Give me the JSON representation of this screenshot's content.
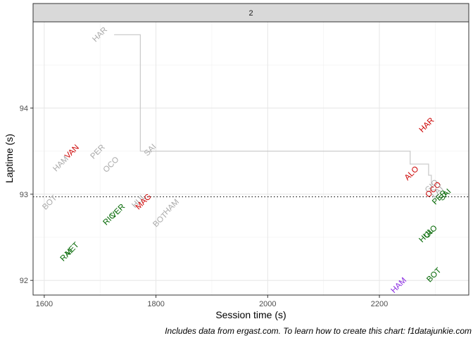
{
  "chart_data": {
    "type": "scatter",
    "facet_label": "2",
    "xlabel": "Session time (s)",
    "ylabel": "Laptime (s)",
    "xlim": [
      1580,
      2360
    ],
    "ylim": [
      91.83,
      95.0
    ],
    "x_ticks": [
      1600,
      1800,
      2000,
      2200
    ],
    "y_ticks": [
      92,
      93,
      94
    ],
    "grid": true,
    "reference_line": {
      "y": 92.97,
      "style": "dotted"
    },
    "step_line": {
      "color": "#cccccc",
      "points": [
        [
          1725,
          94.85
        ],
        [
          1772,
          94.85
        ],
        [
          1772,
          93.5
        ],
        [
          2255,
          93.5
        ],
        [
          2255,
          93.35
        ],
        [
          2288,
          93.35
        ],
        [
          2288,
          93.22
        ],
        [
          2293,
          93.22
        ],
        [
          2293,
          93.05
        ],
        [
          2300,
          93.05
        ]
      ]
    },
    "points": [
      {
        "label": "HAR",
        "x": 1700,
        "y": 94.85,
        "color": "#aaaaaa"
      },
      {
        "label": "HAM",
        "x": 1630,
        "y": 93.35,
        "color": "#aaaaaa"
      },
      {
        "label": "VAN",
        "x": 1650,
        "y": 93.49,
        "color": "#cc0000"
      },
      {
        "label": "PER",
        "x": 1696,
        "y": 93.49,
        "color": "#aaaaaa"
      },
      {
        "label": "OCO",
        "x": 1720,
        "y": 93.34,
        "color": "#aaaaaa"
      },
      {
        "label": "SAI",
        "x": 1790,
        "y": 93.51,
        "color": "#aaaaaa"
      },
      {
        "label": "BOT",
        "x": 1610,
        "y": 92.9,
        "color": "#aaaaaa"
      },
      {
        "label": "HUL",
        "x": 1770,
        "y": 92.92,
        "color": "#aaaaaa"
      },
      {
        "label": "MAG",
        "x": 1778,
        "y": 92.91,
        "color": "#cc0000"
      },
      {
        "label": "BOT",
        "x": 1808,
        "y": 92.7,
        "color": "#aaaaaa"
      },
      {
        "label": "HAM",
        "x": 1828,
        "y": 92.85,
        "color": "#aaaaaa"
      },
      {
        "label": "RIC",
        "x": 1717,
        "y": 92.71,
        "color": "#006600"
      },
      {
        "label": "VER",
        "x": 1732,
        "y": 92.8,
        "color": "#006600"
      },
      {
        "label": "RAI",
        "x": 1640,
        "y": 92.29,
        "color": "#006600"
      },
      {
        "label": "VET",
        "x": 1650,
        "y": 92.36,
        "color": "#006600"
      },
      {
        "label": "HAR",
        "x": 2285,
        "y": 93.8,
        "color": "#cc0000"
      },
      {
        "label": "ALO",
        "x": 2258,
        "y": 93.24,
        "color": "#cc0000"
      },
      {
        "label": "GIO",
        "x": 2294,
        "y": 93.09,
        "color": "#aaaaaa"
      },
      {
        "label": "OCO",
        "x": 2297,
        "y": 93.05,
        "color": "#cc0000"
      },
      {
        "label": "LAT",
        "x": 2305,
        "y": 93.03,
        "color": "#aaaaaa"
      },
      {
        "label": "PER",
        "x": 2308,
        "y": 92.96,
        "color": "#006600"
      },
      {
        "label": "SAI",
        "x": 2318,
        "y": 92.99,
        "color": "#006600"
      },
      {
        "label": "HUL",
        "x": 2284,
        "y": 92.52,
        "color": "#006600"
      },
      {
        "label": "GIO",
        "x": 2292,
        "y": 92.56,
        "color": "#006600"
      },
      {
        "label": "BOT",
        "x": 2298,
        "y": 92.06,
        "color": "#006600"
      },
      {
        "label": "HAM",
        "x": 2235,
        "y": 91.94,
        "color": "#8a2be2"
      }
    ]
  },
  "caption": "Includes data from ergast.com. To learn how to create this chart: f1datajunkie.com"
}
